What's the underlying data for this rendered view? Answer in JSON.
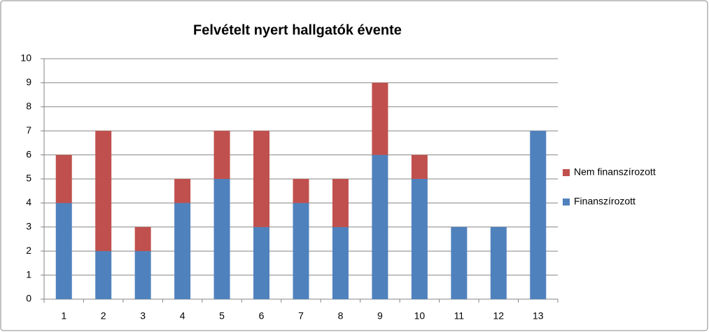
{
  "chart_data": {
    "type": "stacked_bar",
    "title": "Felvételt nyert hallgatók évente",
    "categories": [
      "1",
      "2",
      "3",
      "4",
      "5",
      "6",
      "7",
      "8",
      "9",
      "10",
      "11",
      "12",
      "13"
    ],
    "series": [
      {
        "name": "Finanszírozott",
        "color": "#4f81bd",
        "values": [
          4,
          2,
          2,
          4,
          5,
          3,
          4,
          3,
          6,
          5,
          3,
          3,
          7
        ]
      },
      {
        "name": "Nem finanszírozott",
        "color": "#c0504d",
        "values": [
          2,
          5,
          1,
          1,
          2,
          4,
          1,
          2,
          3,
          1,
          0,
          0,
          0
        ]
      }
    ],
    "ylim": [
      0,
      10
    ],
    "yticks": [
      0,
      1,
      2,
      3,
      4,
      5,
      6,
      7,
      8,
      9,
      10
    ],
    "grid": true,
    "legend": "right"
  }
}
